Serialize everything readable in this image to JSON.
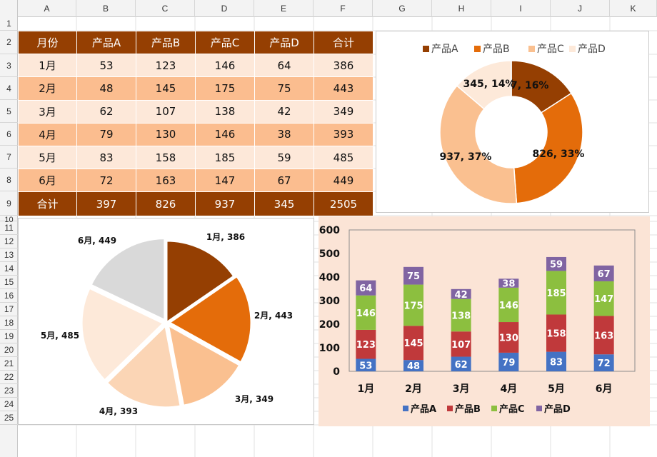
{
  "sheet": {
    "columns": [
      "A",
      "B",
      "C",
      "D",
      "E",
      "F",
      "G",
      "H",
      "I",
      "J",
      "K"
    ],
    "rows": [
      "1",
      "2",
      "3",
      "4",
      "5",
      "6",
      "7",
      "8",
      "9",
      "10",
      "11",
      "12",
      "13",
      "14",
      "15",
      "16",
      "17",
      "18",
      "19",
      "20",
      "21",
      "22",
      "23",
      "24",
      "25"
    ]
  },
  "table": {
    "headers": [
      "月份",
      "产品A",
      "产品B",
      "产品C",
      "产品D",
      "合计"
    ],
    "rows": [
      [
        "1月",
        "53",
        "123",
        "146",
        "64",
        "386"
      ],
      [
        "2月",
        "48",
        "145",
        "175",
        "75",
        "443"
      ],
      [
        "3月",
        "62",
        "107",
        "138",
        "42",
        "349"
      ],
      [
        "4月",
        "79",
        "130",
        "146",
        "38",
        "393"
      ],
      [
        "5月",
        "83",
        "158",
        "185",
        "59",
        "485"
      ],
      [
        "6月",
        "72",
        "163",
        "147",
        "67",
        "449"
      ]
    ],
    "total_row": [
      "合计",
      "397",
      "826",
      "937",
      "345",
      "2505"
    ]
  },
  "colors": {
    "header_bg": "#953f02",
    "band_light": "#fde8d9",
    "band_dark": "#fbbd8f",
    "product_a": "#953f02",
    "product_b": "#e46c0a",
    "product_c": "#fac090",
    "product_d": "#fde9d9",
    "bar_a": "#4472c4",
    "bar_b": "#c0393b",
    "bar_c": "#8cbf3f",
    "bar_d": "#8064a2"
  },
  "chart_data": [
    {
      "type": "pie",
      "variant": "donut",
      "labels": [
        "产品A",
        "产品B",
        "产品C",
        "产品D"
      ],
      "values": [
        397,
        826,
        937,
        345
      ],
      "percent_labels": [
        "16%",
        "33%",
        "37%",
        "14%"
      ],
      "colors": [
        "#953f02",
        "#e46c0a",
        "#fac090",
        "#fde9d9"
      ],
      "legend": "top"
    },
    {
      "type": "pie",
      "labels": [
        "1月",
        "2月",
        "3月",
        "4月",
        "5月",
        "6月"
      ],
      "values": [
        386,
        443,
        349,
        393,
        485,
        449
      ],
      "colors": [
        "#953f02",
        "#e46c0a",
        "#fac090",
        "#fbd5b5",
        "#fde9d9",
        "#d9d9d9"
      ],
      "legend": "none"
    },
    {
      "type": "bar",
      "stacked": true,
      "categories": [
        "1月",
        "2月",
        "3月",
        "4月",
        "5月",
        "6月"
      ],
      "series": [
        {
          "name": "产品A",
          "values": [
            53,
            48,
            62,
            79,
            83,
            72
          ]
        },
        {
          "name": "产品B",
          "values": [
            123,
            145,
            107,
            130,
            158,
            163
          ]
        },
        {
          "name": "产品C",
          "values": [
            146,
            175,
            138,
            146,
            185,
            147
          ]
        },
        {
          "name": "产品D",
          "values": [
            64,
            75,
            42,
            38,
            59,
            67
          ]
        }
      ],
      "colors": [
        "#4472c4",
        "#c0393b",
        "#8cbf3f",
        "#8064a2"
      ],
      "yticks": [
        0,
        100,
        200,
        300,
        400,
        500,
        600
      ],
      "ylim": [
        0,
        600
      ],
      "grid": false,
      "legend": "bottom"
    }
  ]
}
